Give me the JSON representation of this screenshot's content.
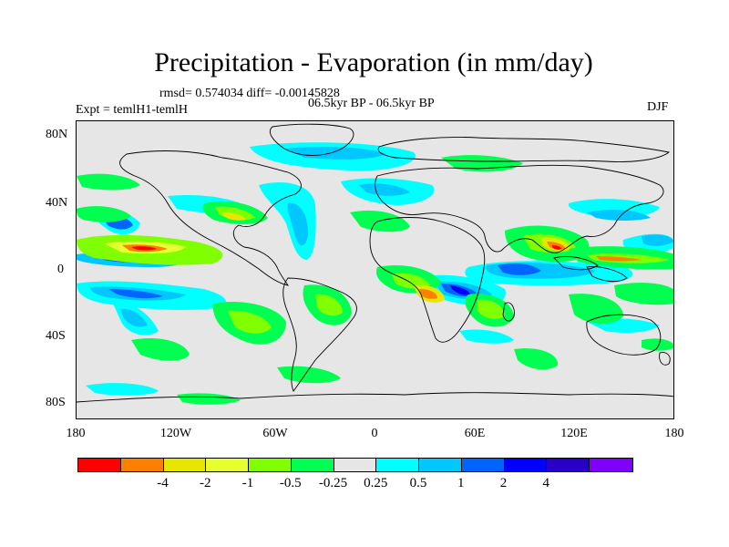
{
  "title": "Precipitation - Evaporation (in mm/day)",
  "stats": "rmsd= 0.574034 diff= -0.00145828",
  "experiment": "Expt = temlH1-temlH",
  "period": "06.5kyr BP - 06.5kyr BP",
  "season": "DJF",
  "y_ticks": [
    "80N",
    "40N",
    "0",
    "40S",
    "80S"
  ],
  "x_ticks": [
    "180",
    "120W",
    "60W",
    "0",
    "60E",
    "120E",
    "180"
  ],
  "colorbar": {
    "colors": [
      "#ff0000",
      "#ff8000",
      "#e6e600",
      "#e6ff30",
      "#80ff00",
      "#00ff50",
      "#e6e6e6",
      "#00ffff",
      "#00c8ff",
      "#0064ff",
      "#0000ff",
      "#2800c8",
      "#8000ff"
    ],
    "labels": [
      "-4",
      "-2",
      "-1",
      "-0.5",
      "-0.25",
      "0.25",
      "0.5",
      "1",
      "2",
      "4"
    ]
  }
}
